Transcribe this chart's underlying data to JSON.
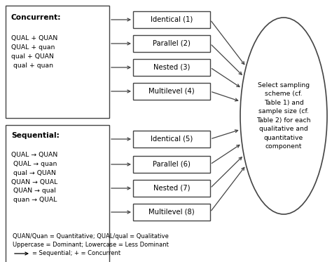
{
  "concurrent_title": "Concurrent:",
  "concurrent_lines": [
    "QUAL + QUAN",
    "QUAL + quan",
    "qual + QUAN",
    " qual + quan"
  ],
  "sequential_title": "Sequential:",
  "sequential_lines": [
    "QUAL → QUAN",
    " QUAL → quan",
    " qual → QUAN",
    "QUAN → QUAL",
    " QUAN → qual",
    " quan → QUAL"
  ],
  "top_boxes": [
    "Identical (1)",
    "Parallel (2)",
    "Nested (3)",
    "Multilevel (4)"
  ],
  "bottom_boxes": [
    "Identical (5)",
    "Parallel (6)",
    "Nested (7)",
    "Multilevel (8)"
  ],
  "circle_text": "Select sampling\nscheme (cf.\nTable 1) and\nsample size (cf.\nTable 2) for each\nqualitative and\nquantitative\ncomponent",
  "legend_line1": "QUAN/Quan = Quantitative; QUAL/qual = Qualitative",
  "legend_line2": "Uppercase = Dominant; Lowercase = Less Dominant",
  "legend_line3": "= Sequential; + = Concurrent",
  "bg_color": "#ffffff",
  "box_color": "#ffffff",
  "box_edge_color": "#444444",
  "arrow_color": "#444444",
  "text_color": "#000000",
  "fontsize": 7.2
}
